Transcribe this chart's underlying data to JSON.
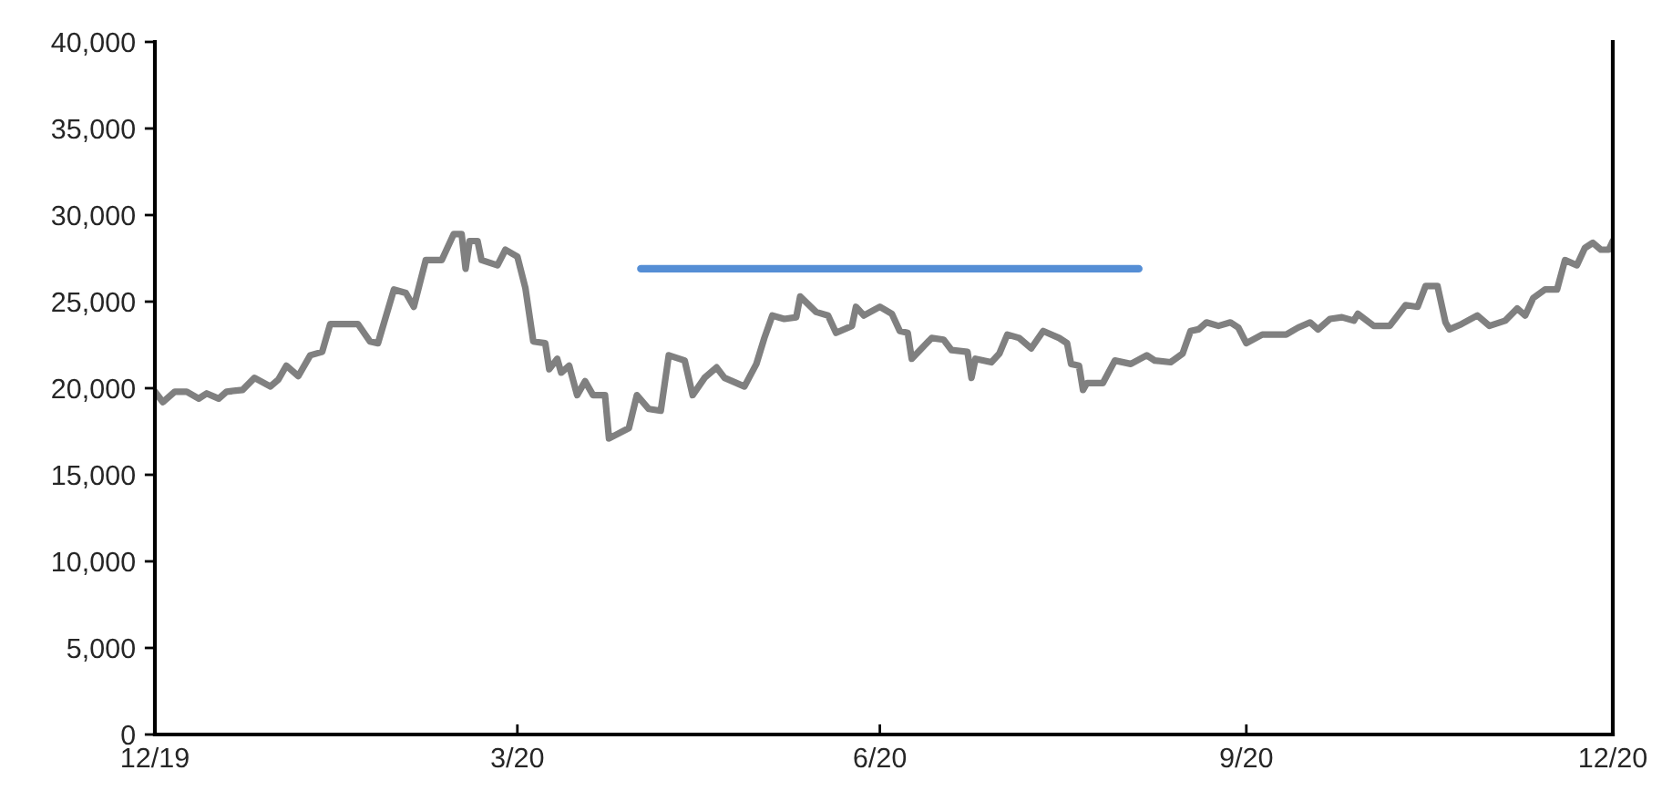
{
  "chart_data": {
    "type": "line",
    "xlim": [
      "2019-12-31",
      "2020-12-31"
    ],
    "xticks": [
      {
        "value": "2019-12-31",
        "label": "12/19"
      },
      {
        "value": "2020-03-31",
        "label": "3/20"
      },
      {
        "value": "2020-06-30",
        "label": "6/20"
      },
      {
        "value": "2020-09-30",
        "label": "9/20"
      },
      {
        "value": "2020-12-31",
        "label": "12/20"
      }
    ],
    "ylim": [
      0,
      40000
    ],
    "yticks": [
      {
        "value": 0,
        "label": "0"
      },
      {
        "value": 5000,
        "label": "5,000"
      },
      {
        "value": 10000,
        "label": "10,000"
      },
      {
        "value": 15000,
        "label": "15,000"
      },
      {
        "value": 20000,
        "label": "20,000"
      },
      {
        "value": 25000,
        "label": "25,000"
      },
      {
        "value": 30000,
        "label": "30,000"
      },
      {
        "value": 35000,
        "label": "35,000"
      },
      {
        "value": 40000,
        "label": "40,000"
      }
    ],
    "grid": false,
    "legend": false,
    "marker": "none",
    "line_style": "solid",
    "series": [
      {
        "color": "#808080",
        "x": [
          "2019-12-31",
          "2020-01-02",
          "2020-01-05",
          "2020-01-08",
          "2020-01-11",
          "2020-01-13",
          "2020-01-16",
          "2020-01-18",
          "2020-01-22",
          "2020-01-25",
          "2020-01-29",
          "2020-01-31",
          "2020-02-02",
          "2020-02-05",
          "2020-02-08",
          "2020-02-11",
          "2020-02-13",
          "2020-02-20",
          "2020-02-23",
          "2020-02-25",
          "2020-02-29",
          "2020-03-03",
          "2020-03-05",
          "2020-03-08",
          "2020-03-12",
          "2020-03-15",
          "2020-03-17",
          "2020-03-18",
          "2020-03-19",
          "2020-03-21",
          "2020-03-22",
          "2020-03-26",
          "2020-03-28",
          "2020-03-31",
          "2020-04-02",
          "2020-04-04",
          "2020-04-07",
          "2020-04-08",
          "2020-04-10",
          "2020-04-11",
          "2020-04-13",
          "2020-04-15",
          "2020-04-17",
          "2020-04-19",
          "2020-04-22",
          "2020-04-23",
          "2020-04-28",
          "2020-04-30",
          "2020-05-03",
          "2020-05-06",
          "2020-05-08",
          "2020-05-12",
          "2020-05-14",
          "2020-05-17",
          "2020-05-20",
          "2020-05-22",
          "2020-05-27",
          "2020-05-30",
          "2020-06-01",
          "2020-06-03",
          "2020-06-06",
          "2020-06-09",
          "2020-06-10",
          "2020-06-14",
          "2020-06-17",
          "2020-06-19",
          "2020-06-23",
          "2020-06-24",
          "2020-06-26",
          "2020-06-30",
          "2020-07-03",
          "2020-07-05",
          "2020-07-07",
          "2020-07-08",
          "2020-07-13",
          "2020-07-16",
          "2020-07-18",
          "2020-07-22",
          "2020-07-23",
          "2020-07-24",
          "2020-07-28",
          "2020-07-30",
          "2020-08-01",
          "2020-08-04",
          "2020-08-07",
          "2020-08-10",
          "2020-08-14",
          "2020-08-16",
          "2020-08-17",
          "2020-08-19",
          "2020-08-20",
          "2020-08-21",
          "2020-08-25",
          "2020-08-28",
          "2020-09-01",
          "2020-09-05",
          "2020-09-07",
          "2020-09-11",
          "2020-09-14",
          "2020-09-16",
          "2020-09-18",
          "2020-09-20",
          "2020-09-23",
          "2020-09-26",
          "2020-09-28",
          "2020-09-30",
          "2020-10-04",
          "2020-10-06",
          "2020-10-10",
          "2020-10-13",
          "2020-10-16",
          "2020-10-18",
          "2020-10-21",
          "2020-10-24",
          "2020-10-27",
          "2020-10-28",
          "2020-11-01",
          "2020-11-05",
          "2020-11-07",
          "2020-11-09",
          "2020-11-12",
          "2020-11-14",
          "2020-11-17",
          "2020-11-19",
          "2020-11-20",
          "2020-11-23",
          "2020-11-27",
          "2020-11-30",
          "2020-12-04",
          "2020-12-07",
          "2020-12-09",
          "2020-12-11",
          "2020-12-14",
          "2020-12-17",
          "2020-12-19",
          "2020-12-22",
          "2020-12-24",
          "2020-12-26",
          "2020-12-28",
          "2020-12-30",
          "2020-12-31"
        ],
        "values": [
          19800,
          19200,
          19800,
          19800,
          19400,
          19700,
          19400,
          19800,
          19900,
          20600,
          20100,
          20500,
          21300,
          20700,
          21900,
          22100,
          23700,
          23700,
          22700,
          22600,
          25700,
          25500,
          24700,
          27400,
          27400,
          28900,
          28900,
          26900,
          28500,
          28500,
          27400,
          27100,
          28000,
          27600,
          25800,
          22700,
          22600,
          21100,
          21700,
          20900,
          21300,
          19600,
          20400,
          19600,
          19600,
          17100,
          17700,
          19600,
          18800,
          18700,
          21900,
          21600,
          19600,
          20600,
          21200,
          20600,
          20100,
          21400,
          22900,
          24200,
          24000,
          24100,
          25300,
          24400,
          24200,
          23200,
          23600,
          24700,
          24200,
          24700,
          24300,
          23300,
          23200,
          21700,
          22900,
          22800,
          22200,
          22100,
          20600,
          21700,
          21500,
          22000,
          23100,
          22900,
          22300,
          23300,
          22900,
          22600,
          21400,
          21300,
          19900,
          20300,
          20300,
          21600,
          21400,
          21900,
          21600,
          21500,
          22000,
          23300,
          23400,
          23800,
          23600,
          23800,
          23500,
          22600,
          23100,
          23100,
          23100,
          23500,
          23800,
          23400,
          24000,
          24100,
          23900,
          24300,
          23600,
          23600,
          24200,
          24800,
          24700,
          25900,
          25900,
          23800,
          23400,
          23700,
          24200,
          23600,
          23900,
          24600,
          24200,
          25200,
          25700,
          25700,
          27400,
          27100,
          28100,
          28400,
          28000,
          28000,
          28500
        ]
      },
      {
        "color": "#558ed5",
        "x": [
          "2020-05-01",
          "2020-09-03"
        ],
        "values": [
          26900,
          26900
        ]
      }
    ]
  }
}
